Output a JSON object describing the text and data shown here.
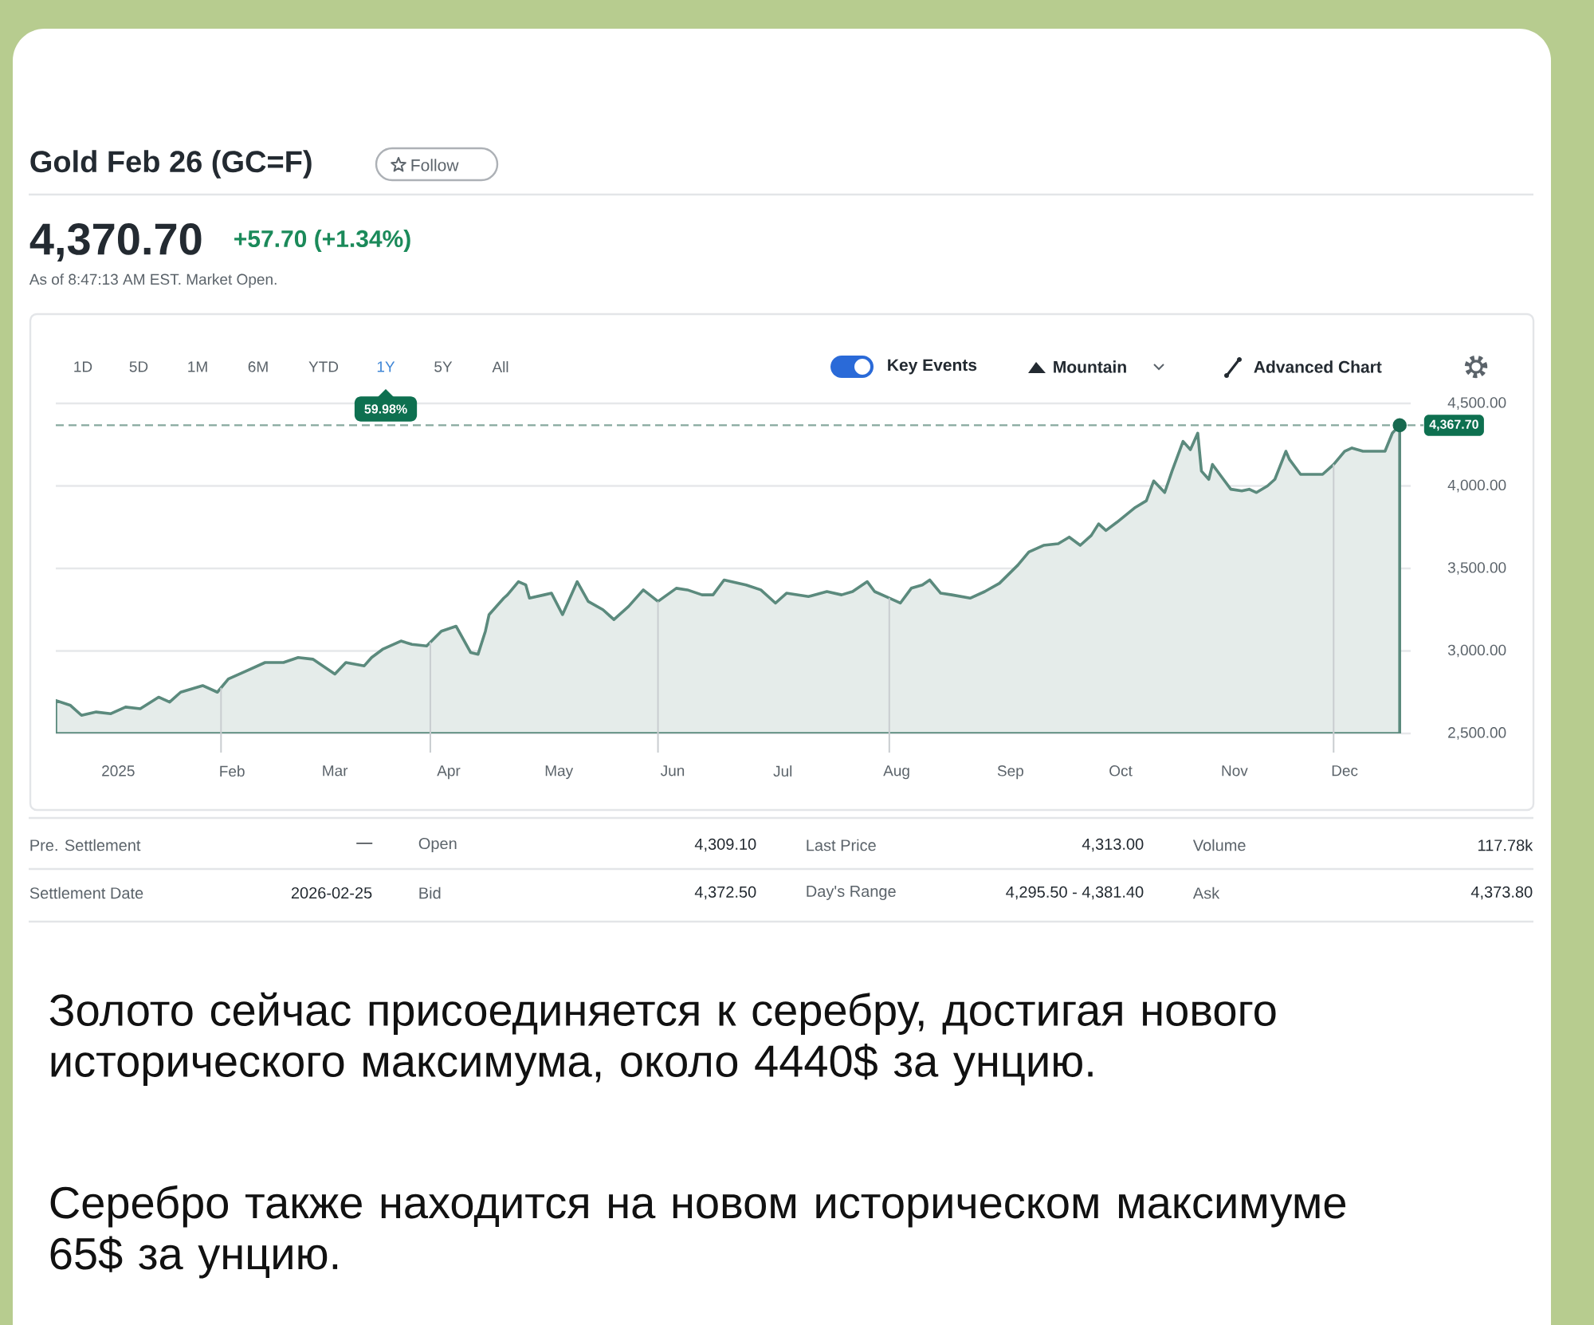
{
  "chart_data": {
    "type": "area",
    "title": "Gold Feb 26 (GC=F)",
    "annotations": [
      "Follow",
      "4,370.70",
      "+57.70 (+1.34%)",
      "As of 8:47:13 AM EST. Market Open.",
      "1D",
      "5D",
      "1M",
      "6M",
      "YTD",
      "1Y",
      "5Y",
      "All",
      "59.98%",
      "Key Events",
      "Mountain",
      "Advanced Chart",
      "Pre. Settlement",
      "—",
      "Open",
      "4,309.10",
      "Last Price",
      "4,313.00",
      "Volume",
      "117.78k",
      "Settlement Date",
      "2026-02-25",
      "Bid",
      "4,372.50",
      "Day's Range",
      "4,295.50 - 4,381.40",
      "Ask",
      "4,373.80",
      "Золото сейчас присоединяется к серебру, достигая нового исторического максимума, около 4440$ за унцию.",
      "Серебро также находится на новом историческом максимуме 65$ за унцию."
    ],
    "x": [
      "2024-12-15",
      "2024-12-19",
      "2024-12-22",
      "2024-12-26",
      "2024-12-30",
      "2025-01-03",
      "2025-01-07",
      "2025-01-12",
      "2025-01-15",
      "2025-01-18",
      "2025-01-24",
      "2025-01-28",
      "2025-01-31",
      "2025-02-05",
      "2025-02-10",
      "2025-02-15",
      "2025-02-19",
      "2025-02-23",
      "2025-02-27",
      "2025-03-01",
      "2025-03-04",
      "2025-03-09",
      "2025-03-11",
      "2025-03-14",
      "2025-03-19",
      "2025-03-22",
      "2025-03-26",
      "2025-03-30",
      "2025-04-03",
      "2025-04-04",
      "2025-04-07",
      "2025-04-09",
      "2025-04-11",
      "2025-04-12",
      "2025-04-16",
      "2025-04-17",
      "2025-04-20",
      "2025-04-22",
      "2025-04-23",
      "2025-04-27",
      "2025-04-29",
      "2025-05-02",
      "2025-05-04",
      "2025-05-06",
      "2025-05-09",
      "2025-05-13",
      "2025-05-16",
      "2025-05-20",
      "2025-05-24",
      "2025-05-28",
      "2025-06-02",
      "2025-06-05",
      "2025-06-09",
      "2025-06-12",
      "2025-06-15",
      "2025-06-21",
      "2025-06-25",
      "2025-06-29",
      "2025-07-02",
      "2025-07-08",
      "2025-07-13",
      "2025-07-17",
      "2025-07-20",
      "2025-07-24",
      "2025-07-26",
      "2025-07-29",
      "2025-08-02",
      "2025-08-05",
      "2025-08-08",
      "2025-08-10",
      "2025-08-13",
      "2025-08-16",
      "2025-08-21",
      "2025-08-25",
      "2025-08-29",
      "2025-09-03",
      "2025-09-06",
      "2025-09-10",
      "2025-09-14",
      "2025-09-17",
      "2025-09-20",
      "2025-09-23",
      "2025-09-25",
      "2025-09-27",
      "2025-09-30",
      "2025-10-05",
      "2025-10-08",
      "2025-10-10",
      "2025-10-13",
      "2025-10-15",
      "2025-10-18",
      "2025-10-20",
      "2025-10-22",
      "2025-10-23",
      "2025-10-25",
      "2025-10-26",
      "2025-10-29",
      "2025-10-31",
      "2025-11-03",
      "2025-11-05",
      "2025-11-07",
      "2025-11-10",
      "2025-11-12",
      "2025-11-15",
      "2025-11-16",
      "2025-11-19",
      "2025-11-21",
      "2025-11-25",
      "2025-11-28",
      "2025-12-01",
      "2025-12-03",
      "2025-12-06",
      "2025-12-10",
      "2025-12-12",
      "2025-12-14",
      "2025-12-16"
    ],
    "series": [
      {
        "color": "#5b8a7d",
        "values": [
          2700,
          2670,
          2610,
          2630,
          2620,
          2660,
          2650,
          2720,
          2690,
          2750,
          2790,
          2750,
          2830,
          2880,
          2930,
          2930,
          2960,
          2950,
          2890,
          2860,
          2930,
          2910,
          2960,
          3010,
          3060,
          3040,
          3030,
          3120,
          3150,
          3110,
          2990,
          2980,
          3120,
          3220,
          3320,
          3340,
          3420,
          3400,
          3320,
          3340,
          3350,
          3220,
          3320,
          3420,
          3300,
          3250,
          3190,
          3270,
          3370,
          3300,
          3380,
          3370,
          3340,
          3340,
          3430,
          3400,
          3370,
          3290,
          3350,
          3330,
          3360,
          3340,
          3360,
          3420,
          3360,
          3330,
          3290,
          3380,
          3400,
          3430,
          3350,
          3340,
          3320,
          3360,
          3410,
          3520,
          3600,
          3640,
          3650,
          3690,
          3640,
          3700,
          3770,
          3730,
          3780,
          3870,
          3910,
          4030,
          3960,
          4090,
          4270,
          4220,
          4320,
          4090,
          4040,
          4130,
          4040,
          3980,
          3970,
          3980,
          3960,
          4000,
          4040,
          4210,
          4160,
          4070,
          4070,
          4070,
          4130,
          4210,
          4230,
          4210,
          4210,
          4210,
          4320,
          4367.7
        ]
      },
      {
        "type": "scatter",
        "x": [
          "2025-12-16"
        ],
        "values": [
          4367.7
        ],
        "color": "#17694f",
        "marker": "circle"
      }
    ],
    "xlim": [
      "2024-12-15",
      "2025-12-19"
    ],
    "ylim": [
      2500,
      4500
    ],
    "xticks": [
      {
        "value": "2025-01-01",
        "label": "2025"
      },
      {
        "value": "2025-02-01",
        "label": "Feb"
      },
      {
        "value": "2025-03-01",
        "label": "Mar"
      },
      {
        "value": "2025-04-01",
        "label": "Apr"
      },
      {
        "value": "2025-05-01",
        "label": "May"
      },
      {
        "value": "2025-06-01",
        "label": "Jun"
      },
      {
        "value": "2025-07-01",
        "label": "Jul"
      },
      {
        "value": "2025-08-01",
        "label": "Aug"
      },
      {
        "value": "2025-09-01",
        "label": "Sep"
      },
      {
        "value": "2025-10-01",
        "label": "Oct"
      },
      {
        "value": "2025-11-01",
        "label": "Nov"
      },
      {
        "value": "2025-12-01",
        "label": "Dec"
      }
    ],
    "yticks": [
      {
        "value": 2500,
        "label": "2,500.00"
      },
      {
        "value": 3000,
        "label": "3,000.00"
      },
      {
        "value": 3500,
        "label": "3,500.00"
      },
      {
        "value": 4000,
        "label": "4,000.00"
      },
      {
        "value": 4500,
        "label": "4,500.00"
      }
    ],
    "grid": "y",
    "ref_lines": [
      {
        "axis": "y",
        "value": 4367.7,
        "label": "4,367.70",
        "line_style": "dashed",
        "color": "#86a89e"
      },
      {
        "axis": "x",
        "value": "2025-01-29",
        "color": "#c9cdd0"
      },
      {
        "axis": "x",
        "value": "2025-03-27",
        "color": "#c9cdd0"
      },
      {
        "axis": "x",
        "value": "2025-05-28",
        "color": "#c9cdd0"
      },
      {
        "axis": "x",
        "value": "2025-07-30",
        "color": "#c9cdd0"
      },
      {
        "axis": "x",
        "value": "2025-11-28",
        "color": "#c9cdd0"
      }
    ]
  }
}
